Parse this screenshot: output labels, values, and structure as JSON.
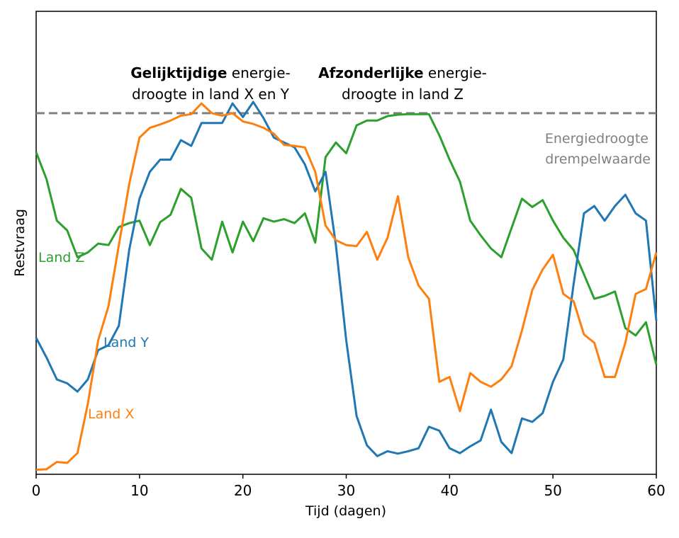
{
  "chart_data": {
    "type": "line",
    "xlabel": "Tijd (dagen)",
    "ylabel": "Restvraag",
    "xlim": [
      0,
      60
    ],
    "ylim": [
      0,
      1
    ],
    "xticks": [
      0,
      10,
      20,
      30,
      40,
      50,
      60
    ],
    "yticks_shown": false,
    "grid": false,
    "threshold": {
      "value": 0.79,
      "label_line1": "Energiedroogte",
      "label_line2": "drempelwaarde",
      "color": "#808080"
    },
    "annotations": [
      {
        "bold": "Gelijktijdige",
        "rest": " energie-",
        "line2": "droogte in land X en Y"
      },
      {
        "bold": "Afzonderlijke",
        "rest": " energie-",
        "line2": "droogte in land Z"
      }
    ],
    "x": [
      0,
      1,
      2,
      3,
      4,
      5,
      6,
      7,
      8,
      9,
      10,
      11,
      12,
      13,
      14,
      15,
      16,
      17,
      18,
      19,
      20,
      21,
      22,
      23,
      24,
      25,
      26,
      27,
      28,
      29,
      30,
      31,
      32,
      33,
      34,
      35,
      36,
      37,
      38,
      39,
      40,
      41,
      42,
      43,
      44,
      45,
      46,
      47,
      48,
      49,
      50,
      51,
      52,
      53,
      54,
      55,
      56,
      57,
      58,
      59,
      60
    ],
    "series": [
      {
        "name": "Land X",
        "color": "#ff7f0e",
        "values": [
          0.06,
          0.061,
          0.076,
          0.074,
          0.094,
          0.195,
          0.325,
          0.395,
          0.52,
          0.645,
          0.74,
          0.76,
          0.767,
          0.775,
          0.785,
          0.788,
          0.81,
          0.79,
          0.785,
          0.79,
          0.773,
          0.768,
          0.76,
          0.748,
          0.725,
          0.723,
          0.72,
          0.67,
          0.56,
          0.53,
          0.52,
          0.518,
          0.547,
          0.49,
          0.535,
          0.62,
          0.495,
          0.437,
          0.41,
          0.24,
          0.25,
          0.18,
          0.258,
          0.24,
          0.23,
          0.245,
          0.272,
          0.345,
          0.428,
          0.47,
          0.5,
          0.42,
          0.405,
          0.337,
          0.32,
          0.25,
          0.25,
          0.32,
          0.42,
          0.43,
          0.505
        ]
      },
      {
        "name": "Land Y",
        "color": "#1f77b4",
        "values": [
          0.33,
          0.29,
          0.245,
          0.237,
          0.22,
          0.245,
          0.305,
          0.315,
          0.355,
          0.51,
          0.615,
          0.67,
          0.695,
          0.695,
          0.735,
          0.723,
          0.77,
          0.77,
          0.77,
          0.81,
          0.782,
          0.813,
          0.78,
          0.74,
          0.73,
          0.72,
          0.685,
          0.63,
          0.67,
          0.52,
          0.325,
          0.17,
          0.11,
          0.088,
          0.098,
          0.093,
          0.098,
          0.104,
          0.148,
          0.14,
          0.104,
          0.094,
          0.108,
          0.12,
          0.183,
          0.117,
          0.094,
          0.165,
          0.158,
          0.176,
          0.24,
          0.286,
          0.44,
          0.585,
          0.6,
          0.57,
          0.6,
          0.623,
          0.585,
          0.57,
          0.365
        ]
      },
      {
        "name": "Land Z",
        "color": "#2ca02c",
        "values": [
          0.71,
          0.655,
          0.57,
          0.55,
          0.495,
          0.505,
          0.523,
          0.52,
          0.557,
          0.565,
          0.57,
          0.52,
          0.567,
          0.582,
          0.635,
          0.617,
          0.513,
          0.49,
          0.568,
          0.505,
          0.568,
          0.528,
          0.575,
          0.568,
          0.573,
          0.565,
          0.585,
          0.525,
          0.7,
          0.73,
          0.708,
          0.765,
          0.775,
          0.775,
          0.784,
          0.787,
          0.788,
          0.788,
          0.788,
          0.745,
          0.695,
          0.65,
          0.57,
          0.54,
          0.513,
          0.495,
          0.555,
          0.615,
          0.598,
          0.612,
          0.57,
          0.535,
          0.51,
          0.46,
          0.41,
          0.416,
          0.425,
          0.35,
          0.335,
          0.362,
          0.275
        ]
      }
    ],
    "series_labels": {
      "land_z": "Land Z",
      "land_y": "Land Y",
      "land_x": "Land X"
    }
  }
}
